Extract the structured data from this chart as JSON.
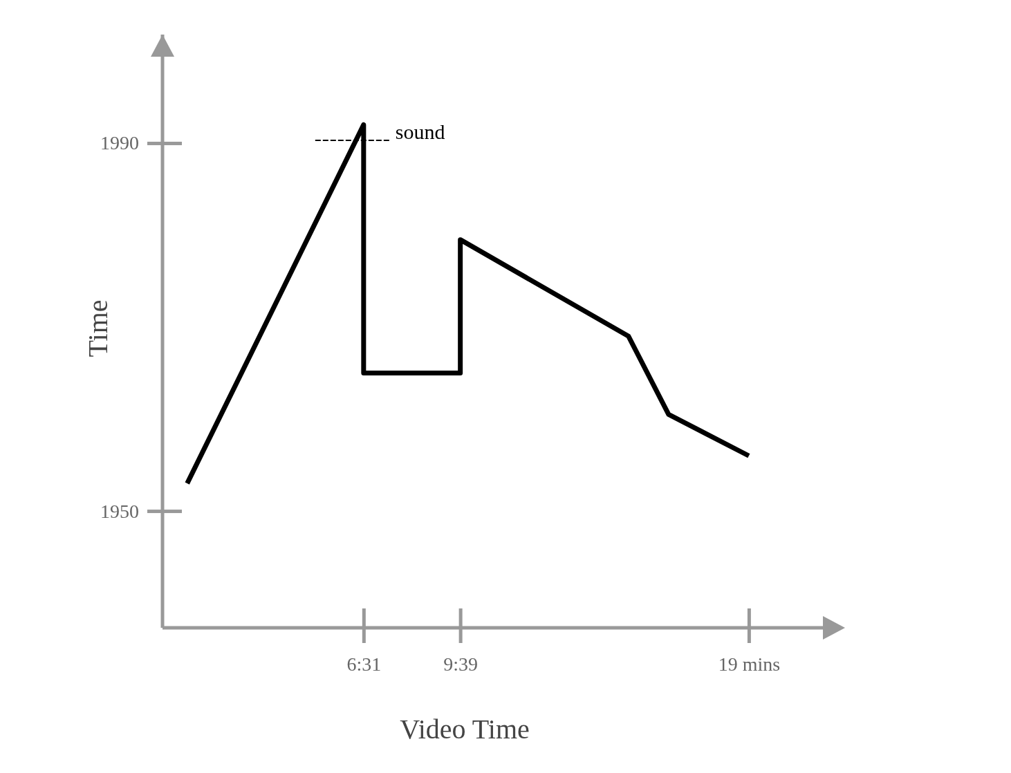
{
  "chart_data": {
    "type": "line",
    "xlabel": "Video Time",
    "ylabel": "Time",
    "x": [
      0.8,
      6.517,
      6.517,
      9.65,
      9.65,
      15.1,
      16.4,
      19
    ],
    "series": [
      {
        "color": "#000000",
        "values": [
          1953,
          1992,
          1965,
          1965,
          1979.5,
          1969,
          1960.5,
          1956
        ]
      }
    ],
    "xlim": [
      0,
      21.4
    ],
    "ylim": [
      1937.3,
      2001.8
    ],
    "xticks": [
      {
        "value": 6.517,
        "label": "6:31"
      },
      {
        "value": 9.65,
        "label": "9:39"
      },
      {
        "value": 19,
        "label": "19 mins"
      }
    ],
    "yticks": [
      1950,
      1990
    ],
    "annotations": [
      {
        "text": "sound",
        "x": 6.517,
        "y": 1990.3
      }
    ]
  }
}
